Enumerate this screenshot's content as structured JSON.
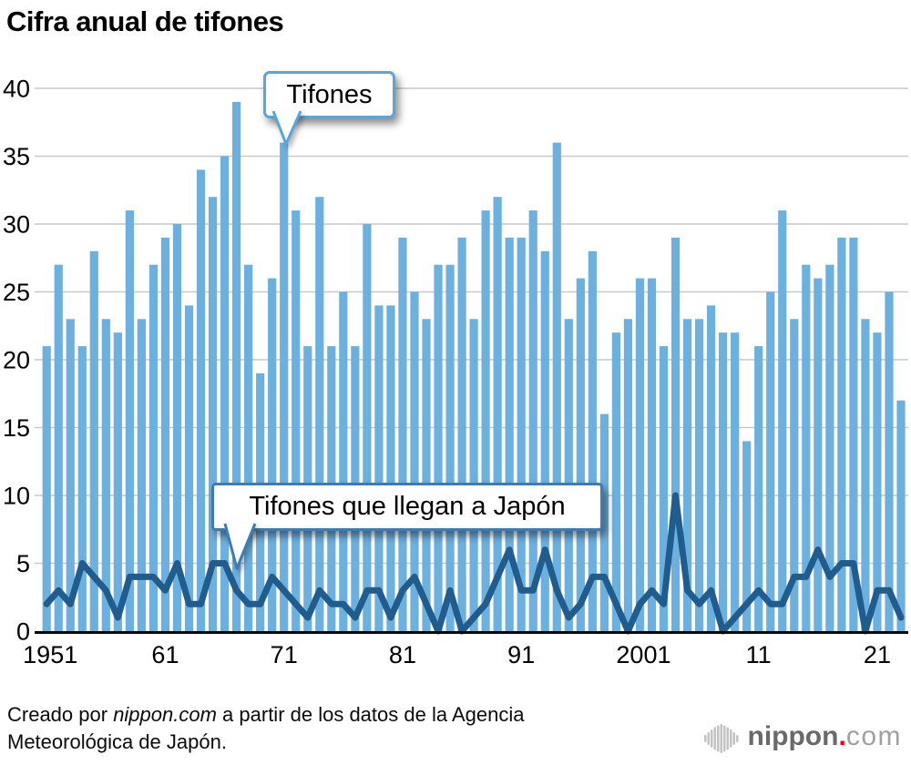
{
  "title": "Cifra anual de tifones",
  "chart_data": {
    "type": "bar+line combo",
    "start_year": 1951,
    "end_year": 2023,
    "ylim": [
      0,
      40
    ],
    "ytick_step": 5,
    "grid": true,
    "legend_position": "callouts-inside-plot",
    "xticks": {
      "years": [
        1951,
        1961,
        1971,
        1981,
        1991,
        2001,
        2011,
        2021
      ],
      "labels": [
        "1951",
        "61",
        "71",
        "81",
        "91",
        "2001",
        "11",
        "21"
      ]
    },
    "series": [
      {
        "name": "Tifones",
        "type": "bar",
        "color": "#6cb0e0",
        "values": [
          21,
          27,
          23,
          21,
          28,
          23,
          22,
          31,
          23,
          27,
          29,
          30,
          24,
          34,
          32,
          35,
          39,
          27,
          19,
          26,
          36,
          31,
          21,
          32,
          21,
          25,
          21,
          30,
          24,
          24,
          29,
          25,
          23,
          27,
          27,
          29,
          23,
          31,
          32,
          29,
          29,
          31,
          28,
          36,
          23,
          26,
          28,
          16,
          22,
          23,
          26,
          26,
          21,
          29,
          23,
          23,
          24,
          22,
          22,
          14,
          21,
          25,
          31,
          23,
          27,
          26,
          27,
          29,
          29,
          23,
          22,
          25,
          17
        ]
      },
      {
        "name": "Tifones que llegan a Japón",
        "type": "line",
        "color": "#215c8e",
        "values": [
          2,
          3,
          2,
          5,
          4,
          3,
          1,
          4,
          4,
          4,
          3,
          5,
          2,
          2,
          5,
          5,
          3,
          2,
          2,
          4,
          3,
          2,
          1,
          3,
          2,
          2,
          1,
          3,
          3,
          1,
          3,
          4,
          2,
          0,
          3,
          0,
          1,
          2,
          4,
          6,
          3,
          3,
          6,
          3,
          1,
          2,
          4,
          4,
          2,
          0,
          2,
          3,
          2,
          10,
          3,
          2,
          3,
          0,
          1,
          2,
          3,
          2,
          2,
          4,
          4,
          6,
          4,
          5,
          5,
          0,
          3,
          3,
          1
        ]
      }
    ],
    "colors": {
      "grid": "#c9c9c9",
      "axis": "#000000",
      "tick_text": "#000000"
    }
  },
  "annotations": {
    "typhoons": {
      "label": "Tifones",
      "border_color": "#58a6de"
    },
    "landfall": {
      "label": "Tifones que llegan a Japón",
      "border_color": "#3c7cb2"
    }
  },
  "footer": {
    "line1_pre": "Creado por ",
    "line1_italic": "nippon.com",
    "line1_post": " a partir de los datos de la Agencia",
    "line2": "Meteorológica de Japón."
  },
  "logo": {
    "name": "nippon",
    "dot": ".",
    "tld": "com",
    "dot_color": "#e60012",
    "icon_color": "#c2c2c2"
  }
}
